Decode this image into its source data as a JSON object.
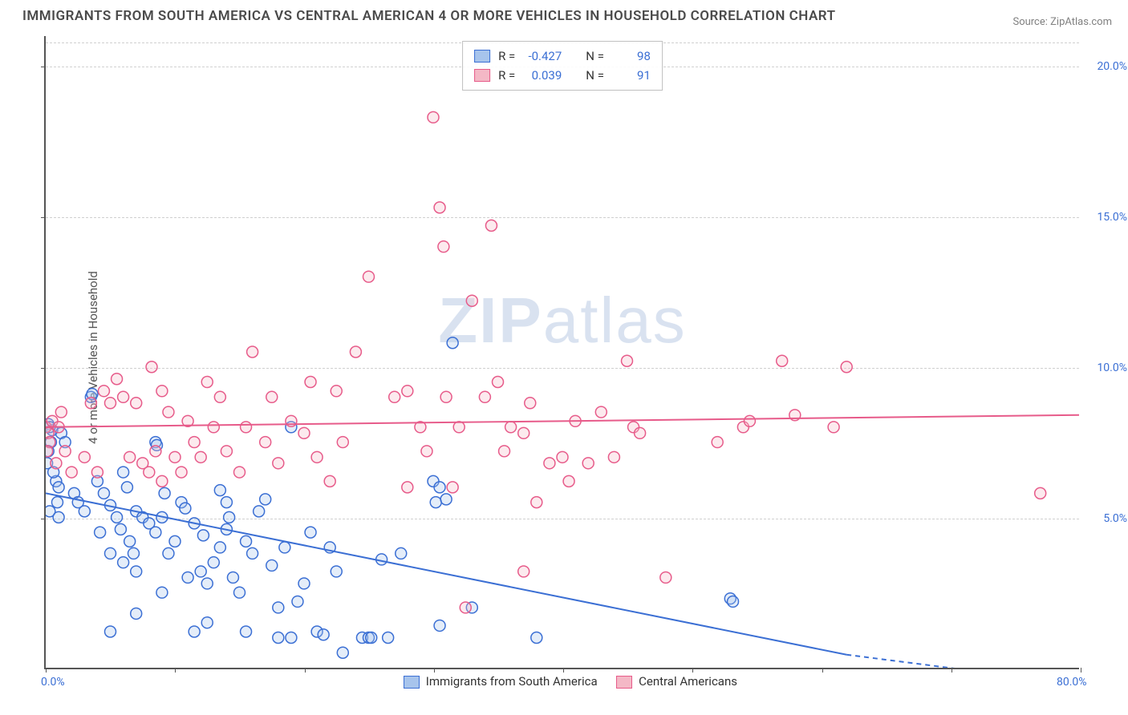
{
  "title": "IMMIGRANTS FROM SOUTH AMERICA VS CENTRAL AMERICAN 4 OR MORE VEHICLES IN HOUSEHOLD CORRELATION CHART",
  "source_label": "Source: ZipAtlas.com",
  "y_axis_label": "4 or more Vehicles in Household",
  "watermark_text_bold": "ZIP",
  "watermark_text_light": "atlas",
  "chart": {
    "type": "scatter",
    "x_range": [
      0,
      80
    ],
    "y_range": [
      0,
      21
    ],
    "x_ticks": [
      0,
      10,
      20,
      30,
      40,
      50,
      60,
      70,
      80
    ],
    "x_tick_labels": {
      "0": "0.0%",
      "80": "80.0%"
    },
    "y_gridlines": [
      5,
      10,
      15,
      20
    ],
    "y_tick_labels": {
      "5": "5.0%",
      "10": "10.0%",
      "15": "15.0%",
      "20": "20.0%"
    },
    "background_color": "#ffffff",
    "grid_color": "#d0d0d0",
    "axis_color": "#555555",
    "marker_radius": 7,
    "marker_stroke_width": 1.5,
    "marker_fill_opacity": 0.3,
    "trend_line_width": 2,
    "series": [
      {
        "id": "south_america",
        "legend_label": "Immigrants from South America",
        "color_fill": "#a7c4ec",
        "color_stroke": "#3b6fd4",
        "r_value": "-0.427",
        "n_value": "98",
        "trend": {
          "x1": 0,
          "y1": 5.8,
          "x2": 67,
          "y2": 0.0,
          "dash_after_x": 62
        },
        "points": [
          [
            0.5,
            7.9
          ],
          [
            0.2,
            8.1
          ],
          [
            0.3,
            8.0
          ],
          [
            0.0,
            8.0
          ],
          [
            0.4,
            7.5
          ],
          [
            0.8,
            6.2
          ],
          [
            1.0,
            6.0
          ],
          [
            0.2,
            7.2
          ],
          [
            0.6,
            6.5
          ],
          [
            0.1,
            6.8
          ],
          [
            1.2,
            7.8
          ],
          [
            1.5,
            7.5
          ],
          [
            0.9,
            5.5
          ],
          [
            0.3,
            5.2
          ],
          [
            1.0,
            5.0
          ],
          [
            2.2,
            5.8
          ],
          [
            2.5,
            5.5
          ],
          [
            3.0,
            5.2
          ],
          [
            3.5,
            9.0
          ],
          [
            3.6,
            9.1
          ],
          [
            4.0,
            6.2
          ],
          [
            4.5,
            5.8
          ],
          [
            5.0,
            5.4
          ],
          [
            5.5,
            5.0
          ],
          [
            5.8,
            4.6
          ],
          [
            6.0,
            6.5
          ],
          [
            6.3,
            6.0
          ],
          [
            6.5,
            4.2
          ],
          [
            6.8,
            3.8
          ],
          [
            7.0,
            5.2
          ],
          [
            7.5,
            5.0
          ],
          [
            8.5,
            7.5
          ],
          [
            8.6,
            7.4
          ],
          [
            4.2,
            4.5
          ],
          [
            5.0,
            3.8
          ],
          [
            6.0,
            3.5
          ],
          [
            7.0,
            3.2
          ],
          [
            8.0,
            4.8
          ],
          [
            8.5,
            4.5
          ],
          [
            9.0,
            5.0
          ],
          [
            9.2,
            5.8
          ],
          [
            9.5,
            3.8
          ],
          [
            10.0,
            4.2
          ],
          [
            10.5,
            5.5
          ],
          [
            10.8,
            5.3
          ],
          [
            11.0,
            3.0
          ],
          [
            11.5,
            4.8
          ],
          [
            12.0,
            3.2
          ],
          [
            12.2,
            4.4
          ],
          [
            12.5,
            2.8
          ],
          [
            13.0,
            3.5
          ],
          [
            13.5,
            4.0
          ],
          [
            14.0,
            4.6
          ],
          [
            14.2,
            5.0
          ],
          [
            14.5,
            3.0
          ],
          [
            15.0,
            2.5
          ],
          [
            15.5,
            4.2
          ],
          [
            16.0,
            3.8
          ],
          [
            16.5,
            5.2
          ],
          [
            17.0,
            5.6
          ],
          [
            17.5,
            3.4
          ],
          [
            18.0,
            2.0
          ],
          [
            18.5,
            4.0
          ],
          [
            19.0,
            8.0
          ],
          [
            19.5,
            2.2
          ],
          [
            14.0,
            5.5
          ],
          [
            20.0,
            2.8
          ],
          [
            20.5,
            4.5
          ],
          [
            21.0,
            1.2
          ],
          [
            21.5,
            1.1
          ],
          [
            22.0,
            4.0
          ],
          [
            22.5,
            3.2
          ],
          [
            23.0,
            0.5
          ],
          [
            24.5,
            1.0
          ],
          [
            25.0,
            1.0
          ],
          [
            25.2,
            1.0
          ],
          [
            26.0,
            3.6
          ],
          [
            26.5,
            1.0
          ],
          [
            27.5,
            3.8
          ],
          [
            5.0,
            1.2
          ],
          [
            7.0,
            1.8
          ],
          [
            9.0,
            2.5
          ],
          [
            11.5,
            1.2
          ],
          [
            12.5,
            1.5
          ],
          [
            15.5,
            1.2
          ],
          [
            18.0,
            1.0
          ],
          [
            19.0,
            1.0
          ],
          [
            30.0,
            6.2
          ],
          [
            30.2,
            5.5
          ],
          [
            30.5,
            6.0
          ],
          [
            31.0,
            5.6
          ],
          [
            31.5,
            10.8
          ],
          [
            33.0,
            2.0
          ],
          [
            38.0,
            1.0
          ],
          [
            53.0,
            2.3
          ],
          [
            53.2,
            2.2
          ],
          [
            30.5,
            1.4
          ],
          [
            13.5,
            5.9
          ]
        ]
      },
      {
        "id": "central_american",
        "legend_label": "Central Americans",
        "color_fill": "#f4b8c6",
        "color_stroke": "#e75b8a",
        "r_value": "0.039",
        "n_value": "91",
        "trend": {
          "x1": 0,
          "y1": 8.0,
          "x2": 80,
          "y2": 8.4
        },
        "points": [
          [
            0.0,
            8.0
          ],
          [
            0.2,
            7.8
          ],
          [
            0.3,
            7.5
          ],
          [
            0.5,
            8.2
          ],
          [
            0.1,
            7.2
          ],
          [
            1.0,
            8.0
          ],
          [
            1.5,
            7.2
          ],
          [
            0.8,
            6.8
          ],
          [
            2.0,
            6.5
          ],
          [
            3.0,
            7.0
          ],
          [
            3.5,
            8.8
          ],
          [
            1.2,
            8.5
          ],
          [
            4.5,
            9.2
          ],
          [
            5.0,
            8.8
          ],
          [
            5.5,
            9.6
          ],
          [
            6.0,
            9.0
          ],
          [
            6.5,
            7.0
          ],
          [
            7.0,
            8.8
          ],
          [
            7.5,
            6.8
          ],
          [
            8.0,
            6.5
          ],
          [
            8.5,
            7.2
          ],
          [
            9.0,
            6.2
          ],
          [
            9.5,
            8.5
          ],
          [
            10.0,
            7.0
          ],
          [
            10.5,
            6.5
          ],
          [
            11.0,
            8.2
          ],
          [
            11.5,
            7.5
          ],
          [
            12.0,
            7.0
          ],
          [
            9.0,
            9.2
          ],
          [
            12.5,
            9.5
          ],
          [
            13.0,
            8.0
          ],
          [
            13.5,
            9.0
          ],
          [
            14.0,
            7.2
          ],
          [
            15.0,
            6.5
          ],
          [
            15.5,
            8.0
          ],
          [
            16.0,
            10.5
          ],
          [
            17.0,
            7.5
          ],
          [
            17.5,
            9.0
          ],
          [
            18.0,
            6.8
          ],
          [
            19.0,
            8.2
          ],
          [
            20.0,
            7.8
          ],
          [
            20.5,
            9.5
          ],
          [
            21.0,
            7.0
          ],
          [
            22.0,
            6.2
          ],
          [
            22.5,
            9.2
          ],
          [
            23.0,
            7.5
          ],
          [
            24.0,
            10.5
          ],
          [
            25.0,
            13.0
          ],
          [
            27.0,
            9.0
          ],
          [
            28.0,
            9.2
          ],
          [
            29.0,
            8.0
          ],
          [
            29.5,
            7.2
          ],
          [
            30.0,
            18.3
          ],
          [
            30.5,
            15.3
          ],
          [
            30.8,
            14.0
          ],
          [
            31.0,
            9.0
          ],
          [
            31.5,
            6.0
          ],
          [
            32.0,
            8.0
          ],
          [
            32.5,
            2.0
          ],
          [
            33.0,
            12.2
          ],
          [
            34.0,
            9.0
          ],
          [
            34.5,
            14.7
          ],
          [
            35.0,
            9.5
          ],
          [
            35.5,
            7.2
          ],
          [
            36.0,
            8.0
          ],
          [
            37.0,
            7.8
          ],
          [
            37.5,
            8.8
          ],
          [
            38.0,
            5.5
          ],
          [
            39.0,
            6.8
          ],
          [
            40.0,
            7.0
          ],
          [
            40.5,
            6.2
          ],
          [
            41.0,
            8.2
          ],
          [
            42.0,
            6.8
          ],
          [
            43.0,
            8.5
          ],
          [
            44.0,
            7.0
          ],
          [
            45.0,
            10.2
          ],
          [
            45.5,
            8.0
          ],
          [
            46.0,
            7.8
          ],
          [
            37.0,
            3.2
          ],
          [
            48.0,
            3.0
          ],
          [
            52.0,
            7.5
          ],
          [
            54.0,
            8.0
          ],
          [
            54.5,
            8.2
          ],
          [
            57.0,
            10.2
          ],
          [
            58.0,
            8.4
          ],
          [
            62.0,
            10.0
          ],
          [
            61.0,
            8.0
          ],
          [
            77.0,
            5.8
          ],
          [
            28.0,
            6.0
          ],
          [
            8.2,
            10.0
          ],
          [
            4.0,
            6.5
          ]
        ]
      }
    ]
  },
  "legend_stats_labels": {
    "r": "R =",
    "n": "N ="
  }
}
